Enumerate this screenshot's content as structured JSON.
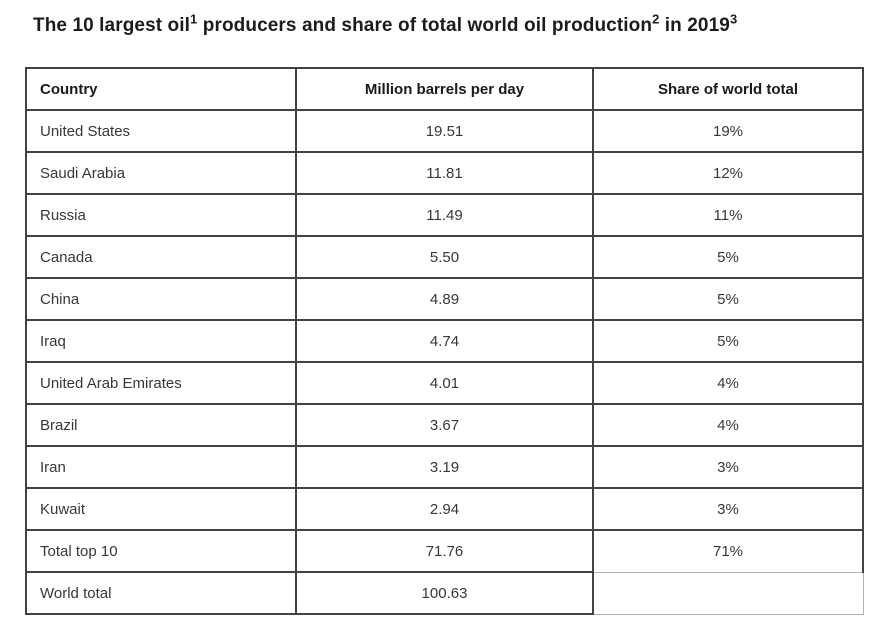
{
  "title": {
    "part1": "The 10 largest oil",
    "sup1": "1",
    "part2": " producers and share of total world oil production",
    "sup2": "2",
    "part3": " in 2019",
    "sup3": "3"
  },
  "table": {
    "columns": [
      "Country",
      "Million barrels per day",
      "Share of world total"
    ],
    "rows": [
      {
        "country": "United States",
        "mbpd": "19.51",
        "share": "19%"
      },
      {
        "country": "Saudi Arabia",
        "mbpd": "11.81",
        "share": "12%"
      },
      {
        "country": "Russia",
        "mbpd": "11.49",
        "share": "11%"
      },
      {
        "country": "Canada",
        "mbpd": "5.50",
        "share": "5%"
      },
      {
        "country": "China",
        "mbpd": "4.89",
        "share": "5%"
      },
      {
        "country": "Iraq",
        "mbpd": "4.74",
        "share": "5%"
      },
      {
        "country": "United Arab Emirates",
        "mbpd": "4.01",
        "share": "4%"
      },
      {
        "country": "Brazil",
        "mbpd": "3.67",
        "share": "4%"
      },
      {
        "country": "Iran",
        "mbpd": "3.19",
        "share": "3%"
      },
      {
        "country": "Kuwait",
        "mbpd": "2.94",
        "share": "3%"
      },
      {
        "country": "Total top 10",
        "mbpd": "71.76",
        "share": "71%"
      },
      {
        "country": "World total",
        "mbpd": "100.63",
        "share": ""
      }
    ]
  },
  "chart_data": {
    "type": "table",
    "title": "The 10 largest oil producers and share of total world oil production in 2019",
    "columns": [
      "Country",
      "Million barrels per day",
      "Share of world total"
    ],
    "categories": [
      "United States",
      "Saudi Arabia",
      "Russia",
      "Canada",
      "China",
      "Iraq",
      "United Arab Emirates",
      "Brazil",
      "Iran",
      "Kuwait",
      "Total top 10",
      "World total"
    ],
    "series": [
      {
        "name": "Million barrels per day",
        "values": [
          19.51,
          11.81,
          11.49,
          5.5,
          4.89,
          4.74,
          4.01,
          3.67,
          3.19,
          2.94,
          71.76,
          100.63
        ]
      },
      {
        "name": "Share of world total (%)",
        "values": [
          19,
          12,
          11,
          5,
          5,
          5,
          4,
          4,
          3,
          3,
          71,
          null
        ]
      }
    ]
  },
  "colors": {
    "border_dark": "#424242",
    "border_light": "#b0b0b0",
    "title_text": "#1c1c1c",
    "cell_text": "#373737",
    "background": "#ffffff"
  }
}
